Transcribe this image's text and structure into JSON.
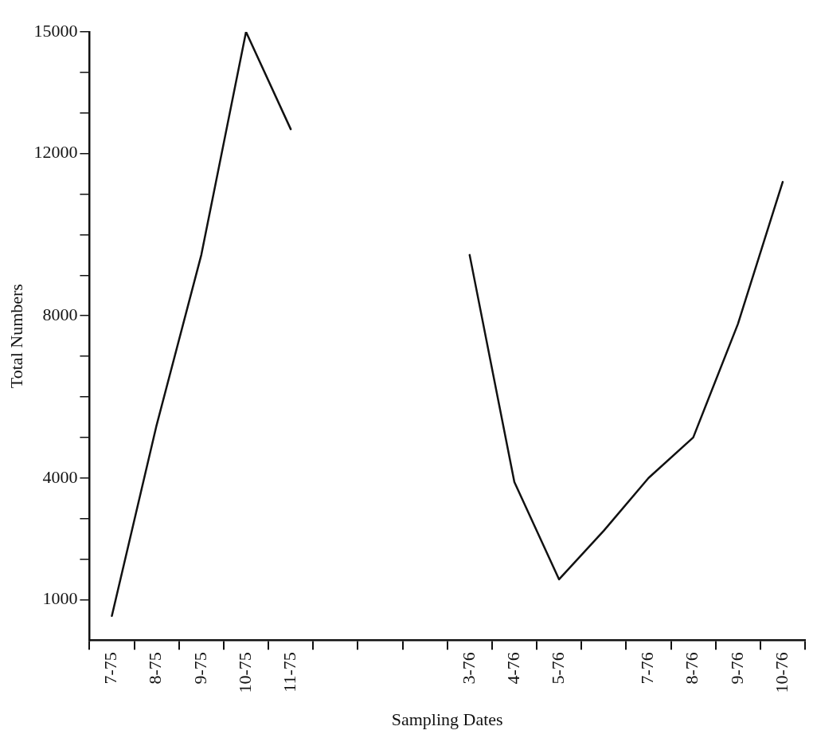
{
  "chart_data": {
    "type": "line",
    "xlabel": "Sampling Dates",
    "ylabel": "Total Numbers",
    "categories": [
      "7-75",
      "8-75",
      "9-75",
      "10-75",
      "11-75",
      null,
      null,
      null,
      "3-76",
      "4-76",
      "5-76",
      null,
      "7-76",
      "8-76",
      "9-76",
      "10-76"
    ],
    "series": [
      {
        "color": "#111111",
        "values": [
          600,
          5300,
          9500,
          15000,
          12600,
          null,
          null,
          null,
          9500,
          3900,
          1500,
          2700,
          4000,
          5000,
          7800,
          11300
        ]
      }
    ],
    "ylim": [
      0,
      15000
    ],
    "yticks": [
      {
        "value": 1000,
        "label": "1000"
      },
      {
        "value": 2000,
        "label": null
      },
      {
        "value": 3000,
        "label": null
      },
      {
        "value": 4000,
        "label": "4000"
      },
      {
        "value": 5000,
        "label": null
      },
      {
        "value": 6000,
        "label": null
      },
      {
        "value": 7000,
        "label": null
      },
      {
        "value": 8000,
        "label": "8000"
      },
      {
        "value": 9000,
        "label": null
      },
      {
        "value": 10000,
        "label": null
      },
      {
        "value": 11000,
        "label": null
      },
      12000,
      {
        "value": 13000,
        "label": null
      },
      {
        "value": 14000,
        "label": null
      },
      {
        "value": 15000,
        "label": "15000"
      }
    ],
    "grid": false,
    "legend": false,
    "marker": "none",
    "line_style": "solid"
  }
}
